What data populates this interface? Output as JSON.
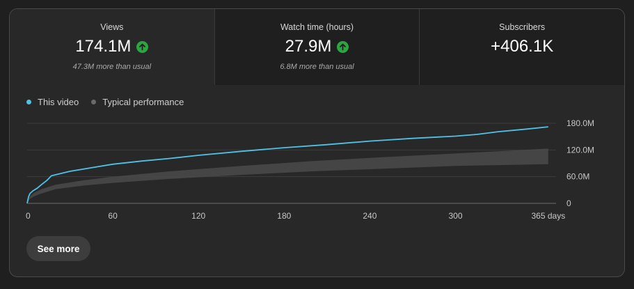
{
  "metrics": [
    {
      "label": "Views",
      "value": "174.1M",
      "trend": "up",
      "sub": "47.3M more than usual"
    },
    {
      "label": "Watch time (hours)",
      "value": "27.9M",
      "trend": "up",
      "sub": "6.8M more than usual"
    },
    {
      "label": "Subscribers",
      "value": "+406.1K",
      "trend": "",
      "sub": ""
    }
  ],
  "legend": {
    "this_video": "This video",
    "typical": "Typical performance"
  },
  "colors": {
    "this_video": "#3ea6ff",
    "line": "#4fc3e6",
    "typical_band": "#4a4a4a",
    "up_badge": "#2ba640"
  },
  "see_more_label": "See more",
  "chart_data": {
    "type": "line",
    "x_tick_labels": [
      "0",
      "60",
      "120",
      "180",
      "240",
      "300",
      "365 days"
    ],
    "x_ticks": [
      0,
      60,
      120,
      180,
      240,
      300,
      365
    ],
    "xlim": [
      0,
      368
    ],
    "y_tick_labels": [
      "180.0M",
      "120.0M",
      "60.0M",
      "0"
    ],
    "y_ticks": [
      180,
      120,
      60,
      0
    ],
    "ylim": [
      0,
      180
    ],
    "y_unit": "M",
    "grid": true,
    "legend_position": "top-left",
    "series": [
      {
        "name": "This video",
        "x": [
          0,
          1,
          2,
          4,
          7,
          10,
          14,
          17,
          30,
          45,
          60,
          80,
          100,
          120,
          150,
          180,
          210,
          240,
          270,
          300,
          315,
          330,
          350,
          365
        ],
        "y": [
          0,
          15,
          22,
          28,
          34,
          42,
          52,
          62,
          72,
          80,
          88,
          95,
          101,
          108,
          117,
          125,
          132,
          140,
          146,
          151,
          155,
          161,
          167,
          172
        ]
      },
      {
        "name": "Typical performance",
        "x": [
          0,
          2,
          5,
          10,
          20,
          40,
          60,
          100,
          150,
          200,
          250,
          300,
          365
        ],
        "y_low": [
          0,
          10,
          16,
          22,
          32,
          40,
          46,
          55,
          64,
          72,
          78,
          84,
          88
        ],
        "y_high": [
          0,
          16,
          24,
          32,
          42,
          52,
          60,
          72,
          84,
          95,
          104,
          112,
          123
        ]
      }
    ]
  }
}
